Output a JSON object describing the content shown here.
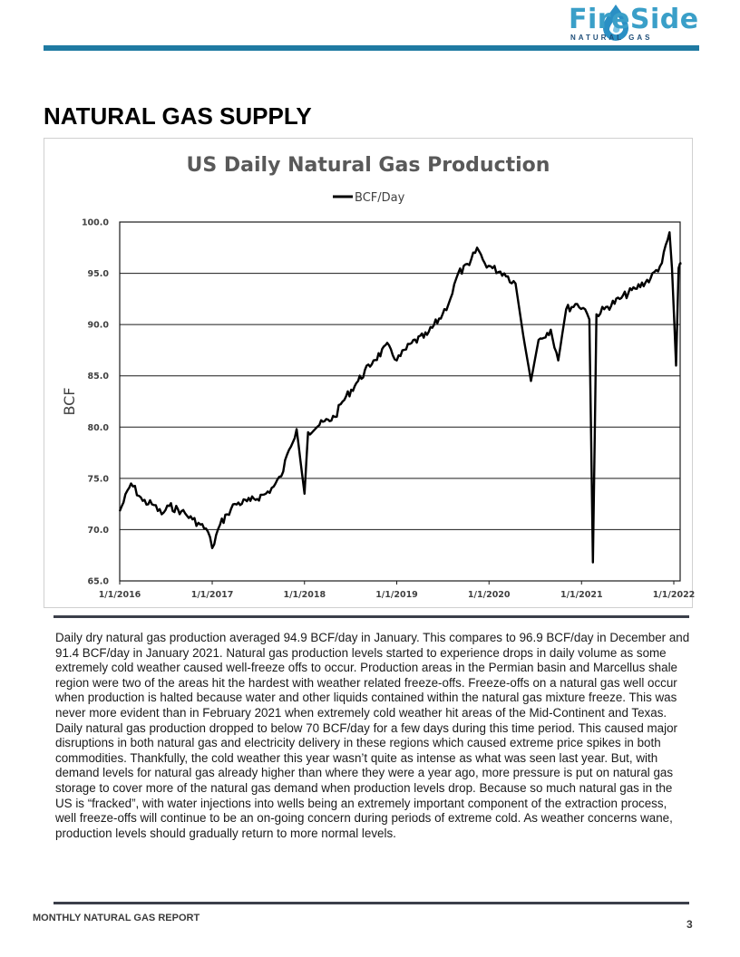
{
  "header": {
    "logo_name": "FireSide",
    "logo_tagline": "NATURAL GAS",
    "logo_icon": "flame-drop-icon",
    "accent_color": "#1f7aa2"
  },
  "section_title": "NATURAL GAS SUPPLY",
  "chart_data": {
    "type": "line",
    "title": "US Daily Natural Gas Production",
    "ylabel": "BCF",
    "xlabel": "",
    "legend": "top-center",
    "grid": true,
    "ylim": [
      65,
      100
    ],
    "y_ticks": [
      "65.0",
      "70.0",
      "75.0",
      "80.0",
      "85.0",
      "90.0",
      "95.0",
      "100.0"
    ],
    "x_ticks": [
      "1/1/2016",
      "1/1/2017",
      "1/1/2018",
      "1/1/2019",
      "1/1/2020",
      "1/1/2021",
      "1/1/2022"
    ],
    "series": [
      {
        "name": "BCF/Day",
        "color": "#000000",
        "points": [
          [
            "2016-01-01",
            71.8
          ],
          [
            "2016-02-15",
            74.5
          ],
          [
            "2016-04-01",
            72.8
          ],
          [
            "2016-05-15",
            72.4
          ],
          [
            "2016-06-15",
            71.5
          ],
          [
            "2016-07-15",
            72.3
          ],
          [
            "2016-09-01",
            71.8
          ],
          [
            "2016-10-15",
            71.0
          ],
          [
            "2016-11-15",
            70.5
          ],
          [
            "2016-12-15",
            69.8
          ],
          [
            "2017-01-01",
            68.2
          ],
          [
            "2017-02-01",
            70.5
          ],
          [
            "2017-03-01",
            71.5
          ],
          [
            "2017-04-01",
            72.5
          ],
          [
            "2017-06-01",
            72.8
          ],
          [
            "2017-08-01",
            73.5
          ],
          [
            "2017-09-01",
            74.2
          ],
          [
            "2017-10-01",
            75.2
          ],
          [
            "2017-11-01",
            77.8
          ],
          [
            "2017-12-01",
            79.8
          ],
          [
            "2018-01-01",
            73.5
          ],
          [
            "2018-01-15",
            79.5
          ],
          [
            "2018-03-01",
            80.2
          ],
          [
            "2018-05-01",
            81.0
          ],
          [
            "2018-06-01",
            82.5
          ],
          [
            "2018-08-01",
            84.5
          ],
          [
            "2018-10-01",
            86.5
          ],
          [
            "2018-12-01",
            88.0
          ],
          [
            "2019-01-01",
            86.5
          ],
          [
            "2019-03-01",
            88.2
          ],
          [
            "2019-05-01",
            89.0
          ],
          [
            "2019-07-01",
            91.0
          ],
          [
            "2019-08-01",
            92.5
          ],
          [
            "2019-09-01",
            95.0
          ],
          [
            "2019-10-15",
            95.8
          ],
          [
            "2019-11-15",
            97.5
          ],
          [
            "2019-12-15",
            96.0
          ],
          [
            "2020-01-15",
            95.5
          ],
          [
            "2020-03-01",
            95.0
          ],
          [
            "2020-04-15",
            94.0
          ],
          [
            "2020-05-15",
            89.0
          ],
          [
            "2020-06-15",
            84.5
          ],
          [
            "2020-07-15",
            88.5
          ],
          [
            "2020-09-01",
            89.5
          ],
          [
            "2020-10-01",
            86.5
          ],
          [
            "2020-11-01",
            91.5
          ],
          [
            "2020-12-15",
            92.0
          ],
          [
            "2021-01-15",
            91.5
          ],
          [
            "2021-02-01",
            90.5
          ],
          [
            "2021-02-15",
            66.8
          ],
          [
            "2021-03-01",
            91.0
          ],
          [
            "2021-04-01",
            91.5
          ],
          [
            "2021-06-01",
            92.5
          ],
          [
            "2021-08-01",
            93.5
          ],
          [
            "2021-10-01",
            94.5
          ],
          [
            "2021-11-15",
            96.0
          ],
          [
            "2021-12-15",
            99.0
          ],
          [
            "2021-12-25",
            95.5
          ],
          [
            "2022-01-10",
            86.0
          ],
          [
            "2022-01-20",
            95.5
          ],
          [
            "2022-01-31",
            96.0
          ]
        ]
      }
    ]
  },
  "body_text": "Daily dry natural gas production averaged 94.9 BCF/day in January.  This compares to 96.9 BCF/day in December and 91.4 BCF/day in January 2021.  Natural gas production levels started to experience drops in daily volume as some extremely cold weather caused well-freeze offs to occur.  Production areas in the Permian basin and Marcellus shale region were two of the areas hit the hardest with weather related freeze-offs.  Freeze-offs on a natural gas well occur when production is halted because water and other liquids contained within the natural gas mixture freeze.  This was never more evident than in February 2021 when extremely cold weather hit areas of the Mid-Continent and Texas.  Daily natural gas production dropped to below 70 BCF/day for a few days during this time period.  This caused major disruptions in both natural gas and electricity delivery in these regions which caused extreme price spikes in both commodities.  Thankfully, the cold weather this year wasn’t quite as intense as what was seen last year.  But, with demand levels for natural gas already higher than where they were a year ago, more pressure is put on natural gas storage to cover more of the natural gas demand when production levels drop.  Because so much natural gas in the US is “fracked”, with water injections into wells being an extremely important component of the extraction process, well freeze-offs will continue to be an on-going concern during periods of extreme cold.  As weather concerns wane, production levels should gradually return to more normal levels.",
  "footer": {
    "label": "MONTHLY NATURAL GAS REPORT",
    "page_number": "3"
  }
}
